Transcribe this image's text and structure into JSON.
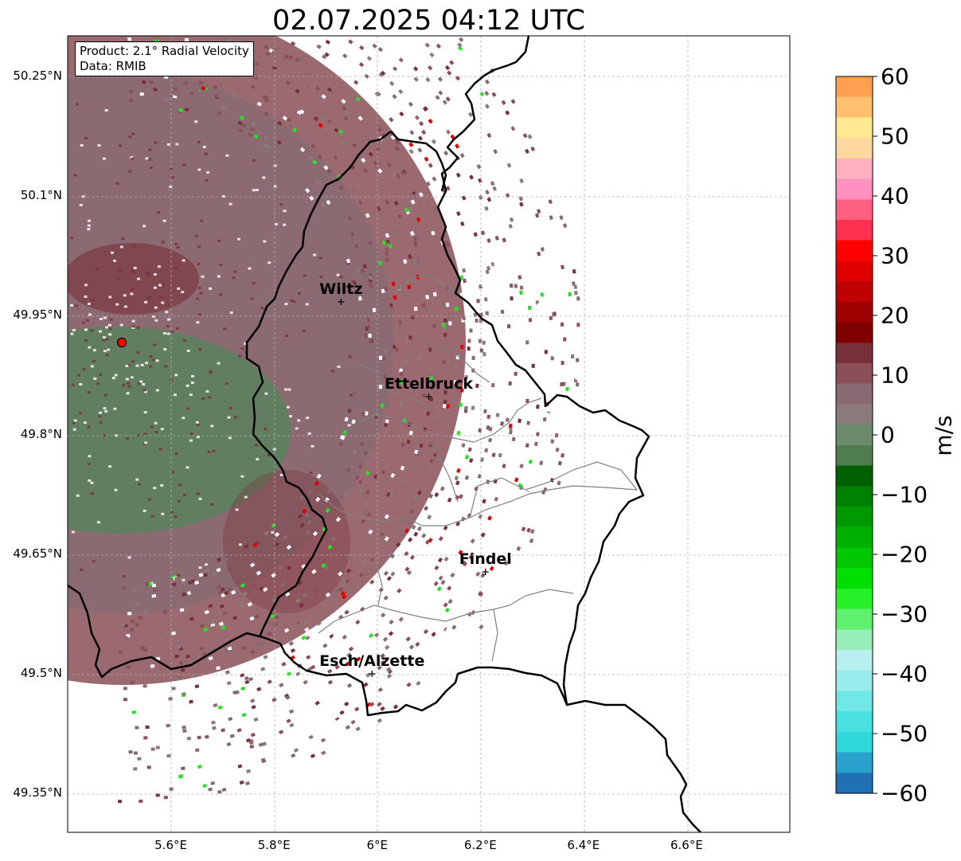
{
  "title": "02.07.2025 04:12 UTC",
  "info": {
    "product": "Product: 2.1° Radial Velocity",
    "data_source": "Data: RMIB"
  },
  "map": {
    "lon_range": [
      5.4,
      6.8
    ],
    "lat_range": [
      49.3,
      50.3
    ],
    "lat_ticks": [
      "50.25°N",
      "50.1°N",
      "49.95°N",
      "49.8°N",
      "49.65°N",
      "49.5°N",
      "49.35°N"
    ],
    "lon_ticks": [
      "5.6°E",
      "5.8°E",
      "6°E",
      "6.2°E",
      "6.4°E",
      "6.6°E"
    ],
    "radar_site": {
      "lon": 5.505,
      "lat": 49.915
    },
    "cities": [
      {
        "name": "Wiltz",
        "lon": 5.93,
        "lat": 49.966
      },
      {
        "name": "Ettelbruck",
        "lon": 6.1,
        "lat": 49.847
      },
      {
        "name": "Findel",
        "lon": 6.21,
        "lat": 49.627
      },
      {
        "name": "Esch/Alzette",
        "lon": 5.99,
        "lat": 49.499
      }
    ]
  },
  "colorbar": {
    "label": "m/s",
    "range": [
      -60,
      60
    ],
    "ticks": [
      "60",
      "50",
      "40",
      "30",
      "20",
      "10",
      "0",
      "−10",
      "−20",
      "−30",
      "−40",
      "−50",
      "−60"
    ],
    "colors": [
      "#2070b4",
      "#2aa0cc",
      "#30d8dc",
      "#48e0e0",
      "#70e8e8",
      "#98ecec",
      "#b8f0f0",
      "#98f0b8",
      "#60f070",
      "#28f028",
      "#00e000",
      "#00c800",
      "#00b000",
      "#009800",
      "#008000",
      "#006000",
      "#507d50",
      "#6a8a6a",
      "#8a7a7a",
      "#8a6a72",
      "#8a5058",
      "#7a3038",
      "#800000",
      "#a00000",
      "#c00000",
      "#e00000",
      "#ff0000",
      "#ff3050",
      "#ff6080",
      "#ff90c0",
      "#ffb0c0",
      "#ffd8a0",
      "#ffe890",
      "#ffc070",
      "#ffa050"
    ]
  }
}
